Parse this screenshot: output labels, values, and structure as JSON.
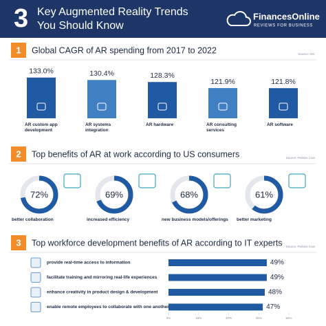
{
  "header": {
    "number": "3",
    "title_line1": "Key Augmented Reality Trends",
    "title_line2": "You Should Know",
    "brand": "FinancesOnline",
    "brand_tagline": "REVIEWS FOR BUSINESS"
  },
  "sections": [
    {
      "number": "1",
      "title": "Global CAGR of AR spending from 2017 to 2022",
      "source": "Source: IDC",
      "items": [
        {
          "label": "AR custom app development",
          "value": 133.0,
          "value_label": "133.0%"
        },
        {
          "label": "AR systems integration",
          "value": 130.4,
          "value_label": "130.4%"
        },
        {
          "label": "AR hardware",
          "value": 128.3,
          "value_label": "128.3%"
        },
        {
          "label": "AR consulting services",
          "value": 121.9,
          "value_label": "121.9%"
        },
        {
          "label": "AR software",
          "value": 121.8,
          "value_label": "121.8%"
        }
      ]
    },
    {
      "number": "2",
      "title": "Top benefits of AR at work according to US consumers",
      "source": "Source: Perkins Coie",
      "items": [
        {
          "label": "better collaboration",
          "value": 72,
          "value_label": "72%"
        },
        {
          "label": "increased efficiency",
          "value": 69,
          "value_label": "69%"
        },
        {
          "label": "new business models/offerings",
          "value": 68,
          "value_label": "68%"
        },
        {
          "label": "better marketing",
          "value": 61,
          "value_label": "61%"
        }
      ]
    },
    {
      "number": "3",
      "title": "Top workforce development benefits of AR according to IT experts",
      "source": "Source: Perkins Coie",
      "items": [
        {
          "label": "provide real-time access to information",
          "value": 49,
          "value_label": "49%"
        },
        {
          "label": "facilitate training and mirroring real-life experiences",
          "value": 49,
          "value_label": "49%"
        },
        {
          "label": "enhance creativity in product design & development",
          "value": 48,
          "value_label": "48%"
        },
        {
          "label": "enable remote employees to collaborate with one another",
          "value": 47,
          "value_label": "47%"
        }
      ],
      "xlim": [
        0,
        60
      ],
      "xticks": [
        {
          "value": 0,
          "label": "0%"
        },
        {
          "value": 15,
          "label": "15%"
        },
        {
          "value": 30,
          "label": "30%"
        },
        {
          "value": 45,
          "label": "45%"
        },
        {
          "value": 60,
          "label": "60%"
        }
      ]
    }
  ]
}
